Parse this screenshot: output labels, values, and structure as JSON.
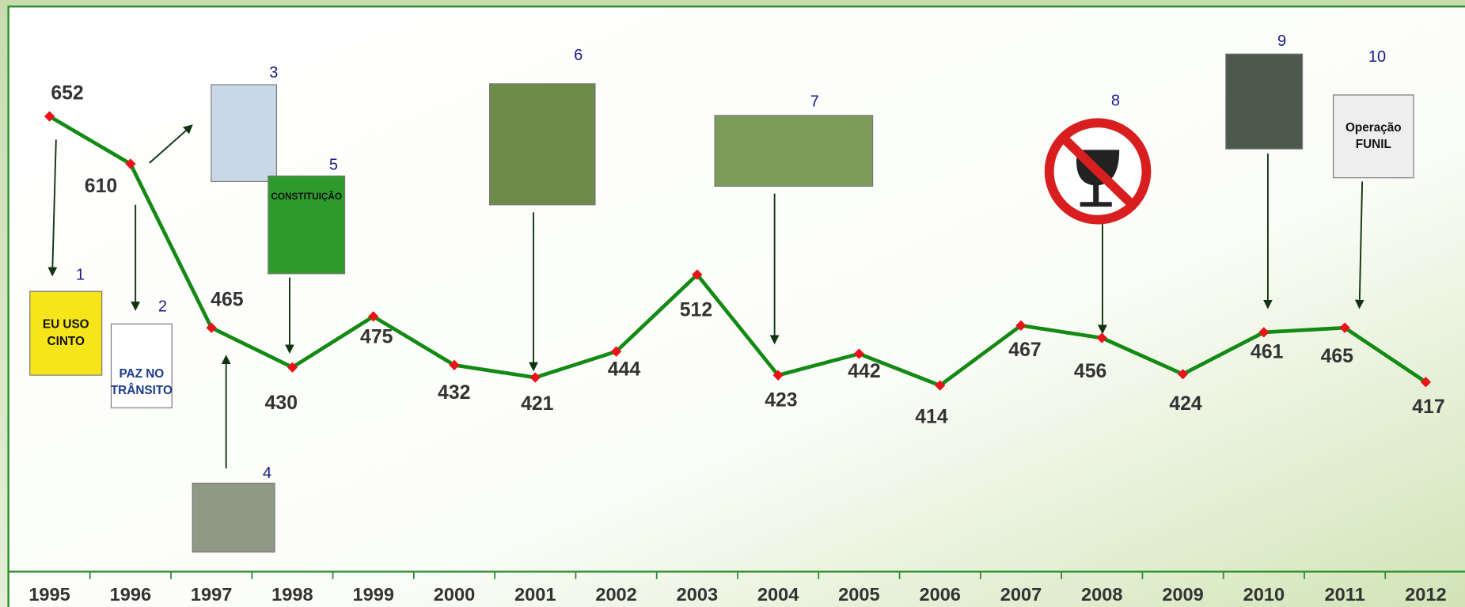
{
  "chart_data": {
    "type": "line",
    "categories": [
      "1995",
      "1996",
      "1997",
      "1998",
      "1999",
      "2000",
      "2001",
      "2002",
      "2003",
      "2004",
      "2005",
      "2006",
      "2007",
      "2008",
      "2009",
      "2010",
      "2011",
      "2012"
    ],
    "values": [
      652,
      610,
      465,
      430,
      475,
      432,
      421,
      444,
      512,
      423,
      442,
      414,
      467,
      456,
      424,
      461,
      465,
      417
    ],
    "color": "#138a13",
    "marker_color": "#e8141a",
    "annotations": [
      {
        "label": "1",
        "image_text": [
          "EU USO",
          "CINTO"
        ]
      },
      {
        "label": "2",
        "image_text": [
          "PAZ NO",
          "TRÂNSITO"
        ]
      },
      {
        "label": "3",
        "image_text": []
      },
      {
        "label": "4",
        "image_text": []
      },
      {
        "label": "5",
        "image_text": [
          "CONSTITUIÇÃO"
        ]
      },
      {
        "label": "6",
        "image_text": []
      },
      {
        "label": "7",
        "image_text": []
      },
      {
        "label": "8",
        "image_text": []
      },
      {
        "label": "9",
        "image_text": []
      },
      {
        "label": "10",
        "image_text": [
          "Operação",
          "FUNIL"
        ]
      }
    ]
  }
}
